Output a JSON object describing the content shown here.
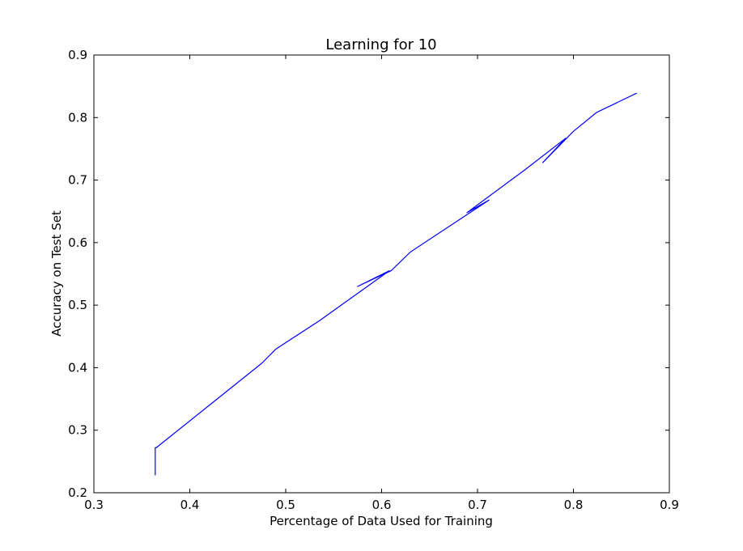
{
  "chart_data": {
    "type": "line",
    "title": "Learning for 10",
    "xlabel": "Percentage of Data Used for Training",
    "ylabel": "Accuracy on Test Set",
    "xlim": [
      0.3,
      0.9
    ],
    "ylim": [
      0.2,
      0.9
    ],
    "xticks": [
      "0.3",
      "0.4",
      "0.5",
      "0.6",
      "0.7",
      "0.8",
      "0.9"
    ],
    "yticks": [
      "0.2",
      "0.3",
      "0.4",
      "0.5",
      "0.6",
      "0.7",
      "0.8",
      "0.9"
    ],
    "grid": false,
    "series": [
      {
        "color": "#0000ff",
        "x": [
          0.364,
          0.364,
          0.365,
          0.475,
          0.49,
          0.535,
          0.608,
          0.575,
          0.61,
          0.63,
          0.712,
          0.689,
          0.75,
          0.792,
          0.768,
          0.8,
          0.824,
          0.866
        ],
        "y": [
          0.228,
          0.272,
          0.272,
          0.407,
          0.43,
          0.475,
          0.555,
          0.53,
          0.555,
          0.585,
          0.668,
          0.648,
          0.717,
          0.767,
          0.728,
          0.778,
          0.808,
          0.839
        ]
      }
    ]
  }
}
